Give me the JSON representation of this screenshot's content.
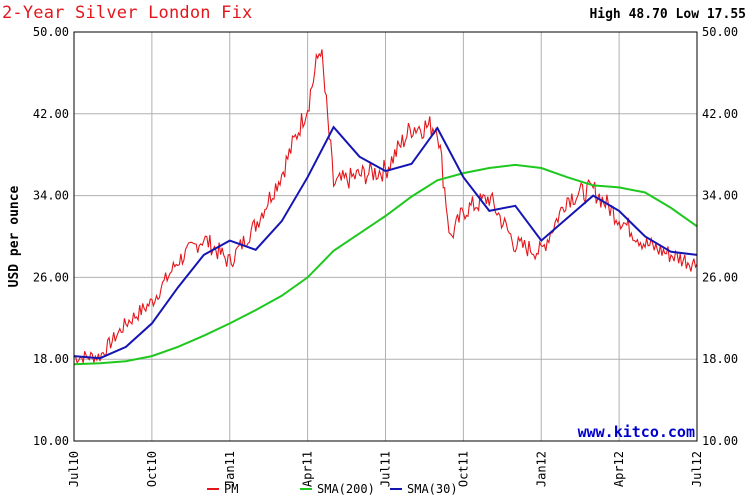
{
  "chart_data": {
    "type": "line",
    "title": "2-Year Silver London Fix",
    "high_low": "High 48.70 Low 17.55",
    "ylabel": "USD per ounce",
    "xlabel": "",
    "ylim": [
      10,
      50
    ],
    "y_ticks": [
      "10.00",
      "18.00",
      "26.00",
      "34.00",
      "42.00",
      "50.00"
    ],
    "x_ticks": [
      "Jul10",
      "Oct10",
      "Jan11",
      "Apr11",
      "Jul11",
      "Oct11",
      "Jan12",
      "Apr12",
      "Jul12"
    ],
    "grid": true,
    "watermark": "www.kitco.com",
    "legend_position": "bottom",
    "colors": {
      "PM": "#e4161b",
      "SMA(200)": "#1ec81e",
      "SMA(30)": "#1515b4",
      "grid": "#b0b0b0"
    },
    "series": [
      {
        "name": "PM",
        "points": [
          [
            "Jul10",
            18.2
          ],
          [
            "Aug10",
            18.3
          ],
          [
            "Sep10",
            21.5
          ],
          [
            "Oct10",
            23.6
          ],
          [
            "Nov10",
            27.6
          ],
          [
            "Dec10",
            29.8
          ],
          [
            "Jan11",
            27.5
          ],
          [
            "Feb11",
            31.2
          ],
          [
            "Mar11",
            36.1
          ],
          [
            "Apr11",
            42.8
          ],
          [
            "Apr11b",
            48.7
          ],
          [
            "May11",
            35.1
          ],
          [
            "Jun11",
            36.0
          ],
          [
            "Jul11",
            36.5
          ],
          [
            "Aug11",
            40.7
          ],
          [
            "Sep11",
            40.8
          ],
          [
            "Sep11b",
            29.8
          ],
          [
            "Oct11",
            32.5
          ],
          [
            "Nov11",
            33.8
          ],
          [
            "Dec11",
            29.2
          ],
          [
            "Jan12",
            28.5
          ],
          [
            "Feb12",
            33.8
          ],
          [
            "Mar12",
            34.6
          ],
          [
            "Apr12",
            31.8
          ],
          [
            "May12",
            29.3
          ],
          [
            "Jun12",
            28.2
          ],
          [
            "Jul12",
            27.3
          ]
        ]
      },
      {
        "name": "SMA(200)",
        "points": [
          [
            "Jul10",
            17.5
          ],
          [
            "Aug10",
            17.6
          ],
          [
            "Sep10",
            17.8
          ],
          [
            "Oct10",
            18.3
          ],
          [
            "Nov10",
            19.2
          ],
          [
            "Dec10",
            20.3
          ],
          [
            "Jan11",
            21.5
          ],
          [
            "Feb11",
            22.8
          ],
          [
            "Mar11",
            24.2
          ],
          [
            "Apr11",
            26.0
          ],
          [
            "May11",
            28.6
          ],
          [
            "Jun11",
            30.3
          ],
          [
            "Jul11",
            32.0
          ],
          [
            "Aug11",
            33.9
          ],
          [
            "Sep11",
            35.5
          ],
          [
            "Oct11",
            36.2
          ],
          [
            "Nov11",
            36.7
          ],
          [
            "Dec11",
            37.0
          ],
          [
            "Jan12",
            36.7
          ],
          [
            "Feb12",
            35.8
          ],
          [
            "Mar12",
            35.0
          ],
          [
            "Apr12",
            34.8
          ],
          [
            "May12",
            34.3
          ],
          [
            "Jun12",
            32.8
          ],
          [
            "Jul12",
            31.0
          ]
        ]
      },
      {
        "name": "SMA(30)",
        "points": [
          [
            "Jul10",
            18.3
          ],
          [
            "Aug10",
            18.1
          ],
          [
            "Sep10",
            19.2
          ],
          [
            "Oct10",
            21.5
          ],
          [
            "Nov10",
            25.0
          ],
          [
            "Dec10",
            28.2
          ],
          [
            "Jan11",
            29.6
          ],
          [
            "Feb11",
            28.7
          ],
          [
            "Mar11",
            31.5
          ],
          [
            "Apr11",
            35.8
          ],
          [
            "May11",
            40.7
          ],
          [
            "Jun11",
            37.8
          ],
          [
            "Jul11",
            36.4
          ],
          [
            "Aug11",
            37.1
          ],
          [
            "Sep11",
            40.6
          ],
          [
            "Oct11",
            35.8
          ],
          [
            "Nov11",
            32.5
          ],
          [
            "Dec11",
            33.0
          ],
          [
            "Jan12",
            29.6
          ],
          [
            "Feb12",
            31.8
          ],
          [
            "Mar12",
            34.0
          ],
          [
            "Apr12",
            32.5
          ],
          [
            "May12",
            30.0
          ],
          [
            "Jun12",
            28.5
          ],
          [
            "Jul12",
            28.2
          ]
        ]
      }
    ]
  }
}
